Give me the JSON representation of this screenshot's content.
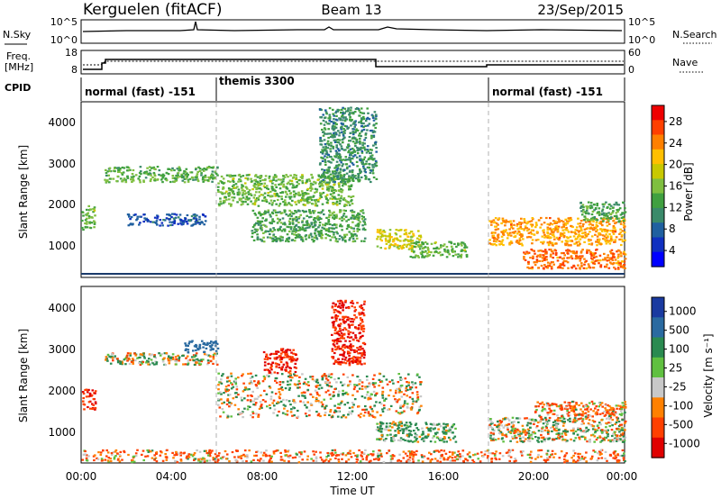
{
  "header": {
    "station": "Kerguelen (fitACF)",
    "beam": "Beam 13",
    "date": "23/Sep/2015"
  },
  "noise_panel": {
    "left_label": "N.Sky",
    "right_label": "N.Search",
    "left_ticks": [
      "10^5",
      "10^0"
    ],
    "right_ticks": [
      "10^5",
      "10^0"
    ]
  },
  "freq_panel": {
    "left_label_1": "Freq.",
    "left_label_2": "[MHz]",
    "right_label": "Nave",
    "left_ticks": [
      "18",
      "8"
    ],
    "right_ticks": [
      "60",
      "0"
    ]
  },
  "cpid_panel": {
    "label": "CPID",
    "segments": [
      {
        "text": "normal (fast) -151",
        "start_h": 0
      },
      {
        "text": "themis 3300",
        "start_h": 6
      },
      {
        "text": "normal (fast) -151",
        "start_h": 18
      }
    ]
  },
  "power_colorbar": {
    "title": "Power [dB]",
    "ticks": [
      "28",
      "24",
      "20",
      "16",
      "12",
      "8",
      "4"
    ],
    "colors": [
      "#ee0000",
      "#ff4000",
      "#ff8000",
      "#ffbf00",
      "#c8c800",
      "#7fbf40",
      "#40a040",
      "#3a8a6a",
      "#2060a0",
      "#1030c0",
      "#0000ff"
    ]
  },
  "velocity_colorbar": {
    "title": "Velocity [m s⁻¹]",
    "ticks": [
      "1000",
      "500",
      "100",
      "25",
      "-25",
      "-100",
      "-500",
      "-1000"
    ],
    "colors": [
      "#1a3aa0",
      "#2a6aa0",
      "#2a8a50",
      "#60c040",
      "#c8c8c8",
      "#ff8000",
      "#ff4000",
      "#e00000"
    ]
  },
  "axes": {
    "ylabel": "Slant Range [km]",
    "xlabel": "Time UT",
    "yticks": [
      "4000",
      "3000",
      "2000",
      "1000"
    ],
    "xticks": [
      "00:00",
      "04:00",
      "08:00",
      "12:00",
      "16:00",
      "20:00",
      "00:00"
    ]
  },
  "chart_data": [
    {
      "type": "heatmap",
      "name": "power",
      "x_unit": "hours UT",
      "y_unit": "km",
      "xlim": [
        0,
        24
      ],
      "ylim": [
        180,
        4500
      ],
      "value_range": [
        0,
        30
      ],
      "regions": [
        {
          "t0": 0.0,
          "t1": 0.6,
          "r0": 1300,
          "r1": 1900,
          "value": 14
        },
        {
          "t0": 1.0,
          "t1": 6.0,
          "r0": 2500,
          "r1": 2900,
          "value": 13
        },
        {
          "t0": 2.0,
          "t1": 5.5,
          "r0": 1400,
          "r1": 1700,
          "value": 6
        },
        {
          "t0": 6.0,
          "t1": 12.0,
          "r0": 1900,
          "r1": 2700,
          "value": 14
        },
        {
          "t0": 7.5,
          "t1": 12.5,
          "r0": 1000,
          "r1": 1800,
          "value": 12
        },
        {
          "t0": 10.5,
          "t1": 13.0,
          "r0": 2500,
          "r1": 4400,
          "value": 10
        },
        {
          "t0": 13.0,
          "t1": 15.0,
          "r0": 800,
          "r1": 1300,
          "value": 18
        },
        {
          "t0": 14.5,
          "t1": 17.0,
          "r0": 600,
          "r1": 1000,
          "value": 14
        },
        {
          "t0": 18.0,
          "t1": 24.0,
          "r0": 900,
          "r1": 1600,
          "value": 22
        },
        {
          "t0": 19.5,
          "t1": 24.0,
          "r0": 300,
          "r1": 800,
          "value": 24
        },
        {
          "t0": 22.0,
          "t1": 24.0,
          "r0": 1500,
          "r1": 2000,
          "value": 12
        }
      ]
    },
    {
      "type": "heatmap",
      "name": "velocity",
      "x_unit": "hours UT",
      "y_unit": "km",
      "xlim": [
        0,
        24
      ],
      "ylim": [
        180,
        4500
      ],
      "value_range": [
        -1000,
        1000
      ],
      "regions": [
        {
          "t0": 0.0,
          "t1": 0.6,
          "r0": 1500,
          "r1": 2000,
          "value": -500
        },
        {
          "t0": 1.0,
          "t1": 6.0,
          "r0": 2600,
          "r1": 2900,
          "value": 0
        },
        {
          "t0": 4.5,
          "t1": 6.0,
          "r0": 2900,
          "r1": 3200,
          "value": 500
        },
        {
          "t0": 6.0,
          "t1": 15.0,
          "r0": 1300,
          "r1": 2400,
          "value": 0
        },
        {
          "t0": 8.0,
          "t1": 9.5,
          "r0": 2400,
          "r1": 3000,
          "value": -500
        },
        {
          "t0": 11.0,
          "t1": 12.5,
          "r0": 2600,
          "r1": 4200,
          "value": -500
        },
        {
          "t0": 13.0,
          "t1": 16.5,
          "r0": 700,
          "r1": 1200,
          "value": 100
        },
        {
          "t0": 18.0,
          "t1": 24.0,
          "r0": 700,
          "r1": 1300,
          "value": 0
        },
        {
          "t0": 20.0,
          "t1": 24.0,
          "r0": 1300,
          "r1": 1700,
          "value": -100
        },
        {
          "t0": 0.0,
          "t1": 24.0,
          "r0": 200,
          "r1": 500,
          "value": -100
        }
      ]
    }
  ]
}
